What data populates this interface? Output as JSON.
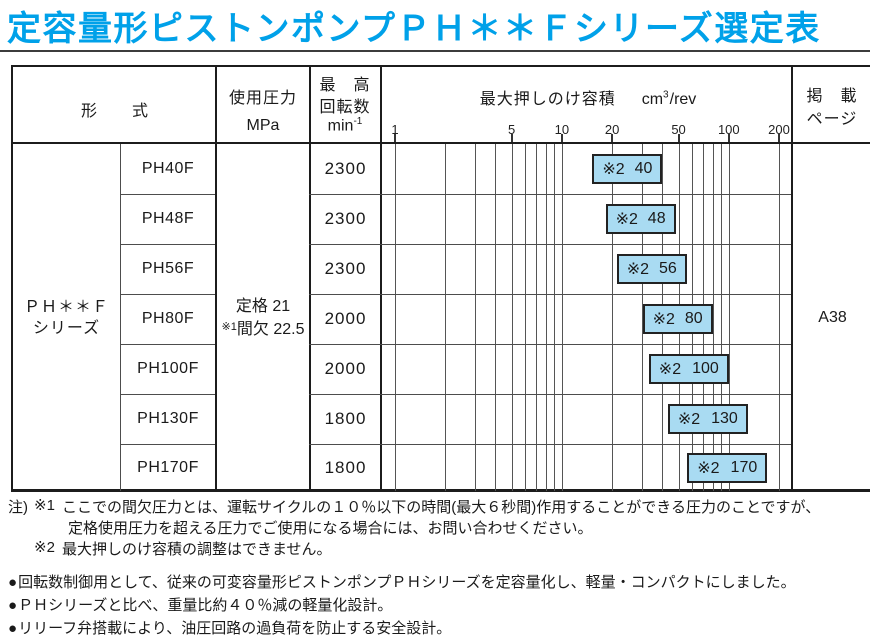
{
  "title": "定容量形ピストンポンプＰＨ＊＊Ｆシリーズ選定表",
  "colors": {
    "accent": "#00A1E9",
    "box_fill": "#A9DBF2",
    "border_dark": "#1c1c1c",
    "grid_gray": "#555555"
  },
  "table": {
    "headers": {
      "model": "形　　式",
      "pressure": "使用圧力",
      "pressure_unit": "MPa",
      "speed_line1": "最　高",
      "speed_line2": "回転数",
      "speed_unit_base": "min",
      "speed_unit_exp": "-1",
      "displacement": "最大押しのけ容積",
      "displacement_unit_base": "cm",
      "displacement_unit_exp": "3",
      "displacement_unit_suffix": "/rev",
      "page_line1": "掲　載",
      "page_line2": "ページ"
    },
    "series_label": {
      "line1": "ＰＨ＊＊Ｆ",
      "line2": "シリーズ"
    },
    "pressure": {
      "rated": "定格 21",
      "intermittent_ref": "※1",
      "intermittent": "間欠 22.5"
    },
    "page_ref": "A38",
    "rows": [
      {
        "model": "PH40F",
        "speed": "2300",
        "box_note": "※2",
        "displacement": "40"
      },
      {
        "model": "PH48F",
        "speed": "2300",
        "box_note": "※2",
        "displacement": "48"
      },
      {
        "model": "PH56F",
        "speed": "2300",
        "box_note": "※2",
        "displacement": "56"
      },
      {
        "model": "PH80F",
        "speed": "2000",
        "box_note": "※2",
        "displacement": "80"
      },
      {
        "model": "PH100F",
        "speed": "2000",
        "box_note": "※2",
        "displacement": "100"
      },
      {
        "model": "PH130F",
        "speed": "1800",
        "box_note": "※2",
        "displacement": "130"
      },
      {
        "model": "PH170F",
        "speed": "1800",
        "box_note": "※2",
        "displacement": "170"
      }
    ]
  },
  "chart_data": {
    "type": "bar",
    "title": "最大押しのけ容積 cm³/rev",
    "xlabel": "cm³/rev",
    "ylabel": "",
    "x_scale": "log",
    "xlim": [
      1,
      200
    ],
    "x_ticks": [
      1,
      5,
      10,
      20,
      50,
      100,
      200
    ],
    "x_gridlines": [
      1,
      2,
      3,
      4,
      5,
      6,
      7,
      8,
      9,
      10,
      20,
      30,
      40,
      50,
      60,
      70,
      80,
      90,
      100,
      200
    ],
    "categories": [
      "PH40F",
      "PH48F",
      "PH56F",
      "PH80F",
      "PH100F",
      "PH130F",
      "PH170F"
    ],
    "values": [
      40,
      48,
      56,
      80,
      100,
      130,
      170
    ],
    "value_note": "※2",
    "legend": "none",
    "grid": "on"
  },
  "notes": {
    "header": "注)",
    "items": [
      {
        "ref": "※1",
        "lines": [
          "ここでの間欠圧力とは、運転サイクルの１０％以下の時間(最大６秒間)作用することができる圧力のことですが、",
          "定格使用圧力を超える圧力でご使用になる場合には、お問い合わせください。"
        ]
      },
      {
        "ref": "※2",
        "lines": [
          "最大押しのけ容積の調整はできません。"
        ]
      }
    ]
  },
  "bullets": {
    "bullet_char": "●",
    "items": [
      "回転数制御用として、従来の可変容量形ピストンポンプＰＨシリーズを定容量化し、軽量・コンパクトにしました。",
      "ＰＨシリーズと比べ、重量比約４０％減の軽量化設計。",
      "リリーフ弁搭載により、油圧回路の過負荷を防止する安全設計。"
    ]
  }
}
